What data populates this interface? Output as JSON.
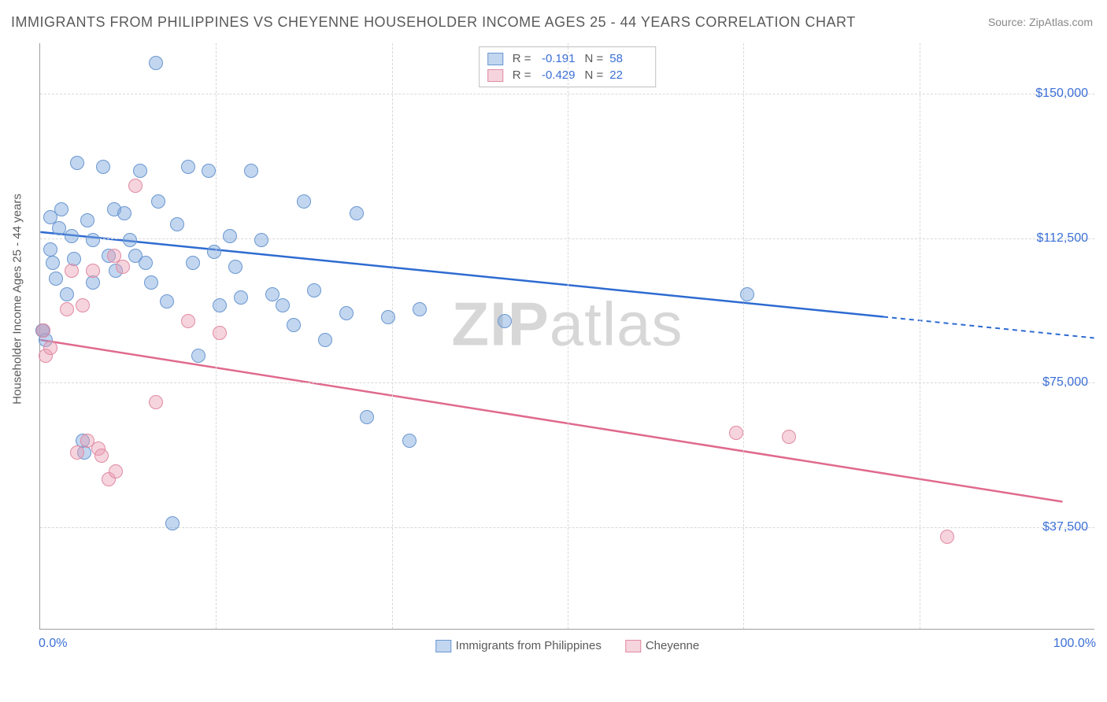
{
  "title": "IMMIGRANTS FROM PHILIPPINES VS CHEYENNE HOUSEHOLDER INCOME AGES 25 - 44 YEARS CORRELATION CHART",
  "source_label": "Source: ",
  "source_value": "ZipAtlas.com",
  "watermark_a": "ZIP",
  "watermark_b": "atlas",
  "chart": {
    "type": "scatter",
    "background_color": "#ffffff",
    "grid_color": "#d8d8d8",
    "axis_color": "#9e9e9e",
    "tick_label_color": "#3b6fd6",
    "axis_title_color": "#5a5a5a",
    "tick_fontsize": 16,
    "axis_title_fontsize": 15,
    "y_axis_title": "Householder Income Ages 25 - 44 years",
    "xlim": [
      0,
      100
    ],
    "ylim": [
      11000,
      163000
    ],
    "x_tick_labels": [
      {
        "pos": 0,
        "text": "0.0%"
      },
      {
        "pos": 100,
        "text": "100.0%"
      }
    ],
    "y_ticks": [
      {
        "value": 37500,
        "label": "$37,500"
      },
      {
        "value": 75000,
        "label": "$75,000"
      },
      {
        "value": 112500,
        "label": "$112,500"
      },
      {
        "value": 150000,
        "label": "$150,000"
      }
    ],
    "x_gridlines": [
      16.67,
      33.33,
      50,
      66.67,
      83.33
    ],
    "marker_radius": 9,
    "marker_border_width": 1.5,
    "series": [
      {
        "name": "Immigrants from Philippines",
        "fill_color": "rgba(120,163,219,0.45)",
        "stroke_color": "#6a97d1",
        "line_color": "#2e6bd1",
        "r_label": "R =",
        "r_value": "-0.191",
        "n_label": "N =",
        "n_value": "58",
        "trend": {
          "x1": 0,
          "y1": 114000,
          "x2": 80,
          "y2": 92000,
          "dash_x2": 100,
          "dash_y2": 86500
        },
        "points": [
          [
            0.2,
            88500
          ],
          [
            0.3,
            88500
          ],
          [
            0.5,
            86000
          ],
          [
            1,
            118000
          ],
          [
            1,
            109500
          ],
          [
            1.2,
            106000
          ],
          [
            1.5,
            102000
          ],
          [
            1.8,
            115000
          ],
          [
            2,
            120000
          ],
          [
            2.5,
            98000
          ],
          [
            3,
            113000
          ],
          [
            3.2,
            107000
          ],
          [
            3.5,
            132000
          ],
          [
            4,
            60000
          ],
          [
            4.2,
            57000
          ],
          [
            4.5,
            117000
          ],
          [
            5,
            101000
          ],
          [
            5,
            112000
          ],
          [
            6,
            131000
          ],
          [
            6.5,
            108000
          ],
          [
            7,
            120000
          ],
          [
            7.2,
            104000
          ],
          [
            8,
            119000
          ],
          [
            8.5,
            112000
          ],
          [
            9,
            108000
          ],
          [
            9.5,
            130000
          ],
          [
            10,
            106000
          ],
          [
            10.5,
            101000
          ],
          [
            11,
            158000
          ],
          [
            11.2,
            122000
          ],
          [
            12,
            96000
          ],
          [
            12.5,
            38500
          ],
          [
            13,
            116000
          ],
          [
            14,
            131000
          ],
          [
            14.5,
            106000
          ],
          [
            15,
            82000
          ],
          [
            16,
            130000
          ],
          [
            16.5,
            109000
          ],
          [
            17,
            95000
          ],
          [
            18,
            113000
          ],
          [
            18.5,
            105000
          ],
          [
            19,
            97000
          ],
          [
            20,
            130000
          ],
          [
            21,
            112000
          ],
          [
            22,
            98000
          ],
          [
            23,
            95000
          ],
          [
            24,
            90000
          ],
          [
            25,
            122000
          ],
          [
            26,
            99000
          ],
          [
            27,
            86000
          ],
          [
            29,
            93000
          ],
          [
            30,
            119000
          ],
          [
            31,
            66000
          ],
          [
            33,
            92000
          ],
          [
            35,
            60000
          ],
          [
            36,
            94000
          ],
          [
            44,
            91000
          ],
          [
            67,
            98000
          ]
        ]
      },
      {
        "name": "Cheyenne",
        "fill_color": "rgba(236,160,180,0.45)",
        "stroke_color": "#e08aa3",
        "line_color": "#e06a8e",
        "r_label": "R =",
        "r_value": "-0.429",
        "n_label": "N =",
        "n_value": "22",
        "trend": {
          "x1": 0,
          "y1": 86000,
          "x2": 97,
          "y2": 44000
        },
        "points": [
          [
            0.3,
            88500
          ],
          [
            0.5,
            82000
          ],
          [
            1,
            84000
          ],
          [
            2.5,
            94000
          ],
          [
            3,
            104000
          ],
          [
            3.5,
            57000
          ],
          [
            4,
            95000
          ],
          [
            4.5,
            60000
          ],
          [
            5,
            104000
          ],
          [
            5.5,
            58000
          ],
          [
            5.8,
            56000
          ],
          [
            6.5,
            50000
          ],
          [
            7,
            108000
          ],
          [
            7.2,
            52000
          ],
          [
            7.8,
            105000
          ],
          [
            9,
            126000
          ],
          [
            11,
            70000
          ],
          [
            14,
            91000
          ],
          [
            17,
            88000
          ],
          [
            66,
            62000
          ],
          [
            71,
            61000
          ],
          [
            86,
            35000
          ]
        ]
      }
    ]
  }
}
